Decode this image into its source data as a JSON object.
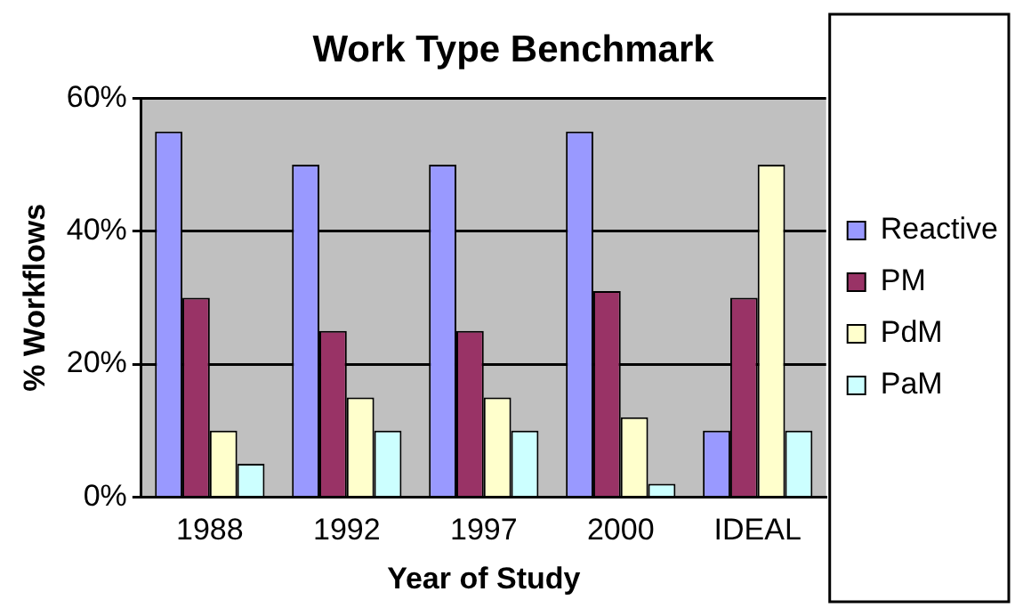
{
  "chart_data": {
    "type": "bar",
    "title": "Work Type Benchmark",
    "xlabel": "Year of Study",
    "ylabel": "% Workflows",
    "categories": [
      "1988",
      "1992",
      "1997",
      "2000",
      "IDEAL"
    ],
    "series": [
      {
        "name": "Reactive",
        "color": "#9999ff",
        "values": [
          55,
          50,
          50,
          55,
          10
        ]
      },
      {
        "name": "PM",
        "color": "#993366",
        "values": [
          30,
          25,
          25,
          31,
          30
        ]
      },
      {
        "name": "PdM",
        "color": "#ffffcc",
        "values": [
          10,
          15,
          15,
          12,
          50
        ]
      },
      {
        "name": "PaM",
        "color": "#ccffff",
        "values": [
          5,
          10,
          10,
          2,
          10
        ]
      }
    ],
    "ylim": [
      0,
      60
    ],
    "yticks": [
      {
        "value": 0,
        "label": "0%"
      },
      {
        "value": 20,
        "label": "20%"
      },
      {
        "value": 40,
        "label": "40%"
      },
      {
        "value": 60,
        "label": "60%"
      }
    ],
    "grid": "y",
    "legend": "right"
  }
}
